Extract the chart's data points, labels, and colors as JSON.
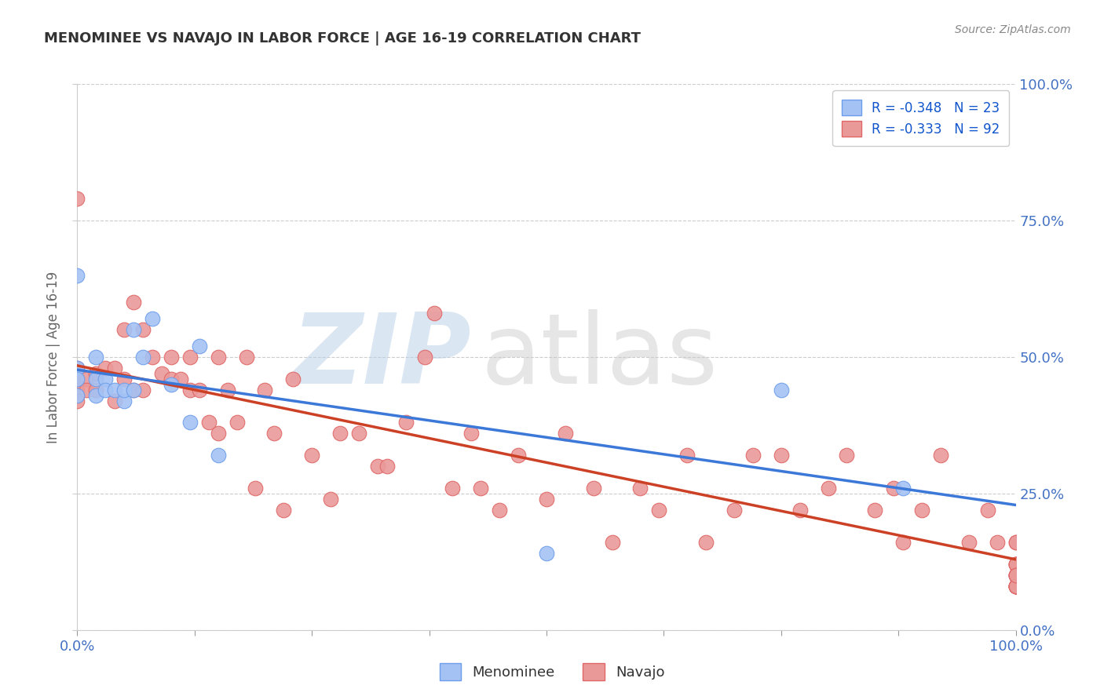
{
  "title": "MENOMINEE VS NAVAJO IN LABOR FORCE | AGE 16-19 CORRELATION CHART",
  "source": "Source: ZipAtlas.com",
  "ylabel": "In Labor Force | Age 16-19",
  "xlim": [
    0.0,
    1.0
  ],
  "ylim": [
    0.0,
    1.0
  ],
  "ytick_positions": [
    0.0,
    0.25,
    0.5,
    0.75,
    1.0
  ],
  "xtick_positions": [
    0.0,
    0.125,
    0.25,
    0.375,
    0.5,
    0.625,
    0.75,
    0.875,
    1.0
  ],
  "menominee_color": "#a4c2f4",
  "navajo_color": "#ea9999",
  "menominee_edge_color": "#6d9eeb",
  "navajo_edge_color": "#e06666",
  "menominee_line_color": "#3c78d8",
  "navajo_line_color": "#cc4125",
  "menominee_R": -0.348,
  "menominee_N": 23,
  "navajo_R": -0.333,
  "navajo_N": 92,
  "legend_R_color": "#1155cc",
  "menominee_x": [
    0.0,
    0.0,
    0.0,
    0.0,
    0.02,
    0.02,
    0.02,
    0.03,
    0.03,
    0.04,
    0.05,
    0.05,
    0.06,
    0.06,
    0.07,
    0.08,
    0.1,
    0.12,
    0.13,
    0.15,
    0.5,
    0.75,
    0.88
  ],
  "menominee_y": [
    0.65,
    0.48,
    0.46,
    0.43,
    0.5,
    0.46,
    0.43,
    0.46,
    0.44,
    0.44,
    0.42,
    0.44,
    0.44,
    0.55,
    0.5,
    0.57,
    0.45,
    0.38,
    0.52,
    0.32,
    0.14,
    0.44,
    0.26
  ],
  "navajo_x": [
    0.0,
    0.0,
    0.0,
    0.0,
    0.0,
    0.0,
    0.01,
    0.01,
    0.02,
    0.02,
    0.03,
    0.04,
    0.04,
    0.05,
    0.05,
    0.06,
    0.06,
    0.07,
    0.07,
    0.08,
    0.09,
    0.1,
    0.1,
    0.11,
    0.12,
    0.12,
    0.13,
    0.14,
    0.15,
    0.15,
    0.16,
    0.17,
    0.18,
    0.19,
    0.2,
    0.21,
    0.22,
    0.23,
    0.25,
    0.27,
    0.28,
    0.3,
    0.32,
    0.33,
    0.35,
    0.37,
    0.38,
    0.4,
    0.42,
    0.43,
    0.45,
    0.47,
    0.5,
    0.52,
    0.55,
    0.57,
    0.6,
    0.62,
    0.65,
    0.67,
    0.7,
    0.72,
    0.75,
    0.77,
    0.8,
    0.82,
    0.85,
    0.87,
    0.88,
    0.9,
    0.92,
    0.95,
    0.97,
    0.98,
    1.0,
    1.0,
    1.0,
    1.0,
    1.0,
    1.0,
    1.0,
    1.0,
    1.0,
    1.0,
    1.0,
    1.0,
    1.0,
    1.0,
    1.0,
    1.0,
    1.0,
    1.0
  ],
  "navajo_y": [
    0.48,
    0.46,
    0.44,
    0.43,
    0.42,
    0.79,
    0.46,
    0.44,
    0.47,
    0.44,
    0.48,
    0.42,
    0.48,
    0.55,
    0.46,
    0.44,
    0.6,
    0.44,
    0.55,
    0.5,
    0.47,
    0.46,
    0.5,
    0.46,
    0.44,
    0.5,
    0.44,
    0.38,
    0.36,
    0.5,
    0.44,
    0.38,
    0.5,
    0.26,
    0.44,
    0.36,
    0.22,
    0.46,
    0.32,
    0.24,
    0.36,
    0.36,
    0.3,
    0.3,
    0.38,
    0.5,
    0.58,
    0.26,
    0.36,
    0.26,
    0.22,
    0.32,
    0.24,
    0.36,
    0.26,
    0.16,
    0.26,
    0.22,
    0.32,
    0.16,
    0.22,
    0.32,
    0.32,
    0.22,
    0.26,
    0.32,
    0.22,
    0.26,
    0.16,
    0.22,
    0.32,
    0.16,
    0.22,
    0.16,
    0.08,
    0.12,
    0.16,
    0.1,
    0.08,
    0.12,
    0.16,
    0.1,
    0.08,
    0.08,
    0.08,
    0.12,
    0.1,
    0.08,
    0.12,
    0.1,
    0.08,
    0.1
  ],
  "background_color": "#ffffff",
  "grid_color": "#cccccc",
  "title_color": "#333333",
  "axis_label_color": "#666666",
  "right_tick_color": "#4472c4",
  "bottom_legend_color": "#333333"
}
